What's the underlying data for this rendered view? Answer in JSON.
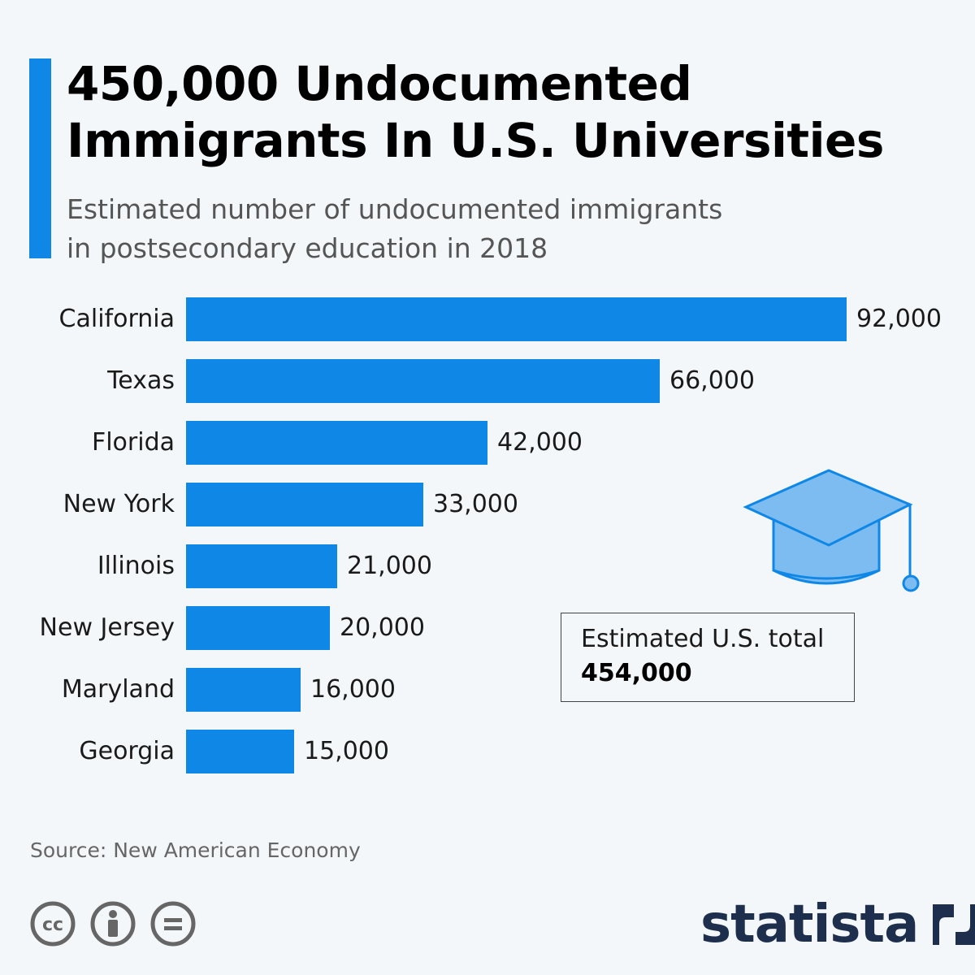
{
  "header": {
    "title_line1": "450,000 Undocumented",
    "title_line2": "Immigrants In U.S. Universities",
    "subtitle_line1": "Estimated number of undocumented immigrants",
    "subtitle_line2": "in postsecondary education in 2018"
  },
  "chart_data": {
    "type": "bar",
    "orientation": "horizontal",
    "title": "450,000 Undocumented Immigrants In U.S. Universities",
    "subtitle": "Estimated number of undocumented immigrants in postsecondary education in 2018",
    "categories": [
      "California",
      "Texas",
      "Florida",
      "New York",
      "Illinois",
      "New Jersey",
      "Maryland",
      "Georgia"
    ],
    "values": [
      92000,
      66000,
      42000,
      33000,
      21000,
      20000,
      16000,
      15000
    ],
    "value_labels": [
      "92,000",
      "66,000",
      "42,000",
      "33,000",
      "21,000",
      "20,000",
      "16,000",
      "15,000"
    ],
    "xlim": [
      0,
      92000
    ],
    "grid": false,
    "bar_color": "#0f87e6"
  },
  "total_box": {
    "label": "Estimated U.S. total",
    "value": "454,000"
  },
  "footer": {
    "source": "Source: New American Economy",
    "brand": "statista",
    "license_icons": [
      "cc-icon",
      "attribution-icon",
      "no-derivatives-icon"
    ]
  },
  "colors": {
    "accent": "#0f87e6",
    "cap_fill": "#7dbcf0",
    "brand": "#1d2f4d"
  }
}
